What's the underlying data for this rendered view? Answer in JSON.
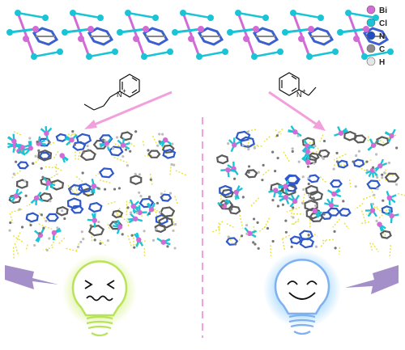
{
  "legend": [
    {
      "symbol": "Bi",
      "color": "#d46ad6"
    },
    {
      "symbol": "Cl",
      "color": "#19c4d6"
    },
    {
      "symbol": "N",
      "color": "#1f4fc2"
    },
    {
      "symbol": "C",
      "color": "#8c8c8c"
    },
    {
      "symbol": "H",
      "color": "#e6e6e6"
    }
  ],
  "molecules": {
    "left": {
      "atom": "N",
      "charge": "+"
    },
    "right": {
      "atom": "N",
      "charge": "+"
    }
  },
  "colors": {
    "arrow": "#f2a0dc",
    "divider": "#f2a0dc",
    "lightning": "#a48fc8",
    "bulb_left": "#b8e35a",
    "bulb_left_glow": "#e4f6b0",
    "bulb_right": "#7fb0f0",
    "bulb_right_glow": "#bfe6ff",
    "hbond": "#e8e23a"
  },
  "icons": {
    "bulb_left": "sad-bulb-icon",
    "bulb_right": "happy-bulb-icon",
    "lightning": "lightning-icon"
  }
}
